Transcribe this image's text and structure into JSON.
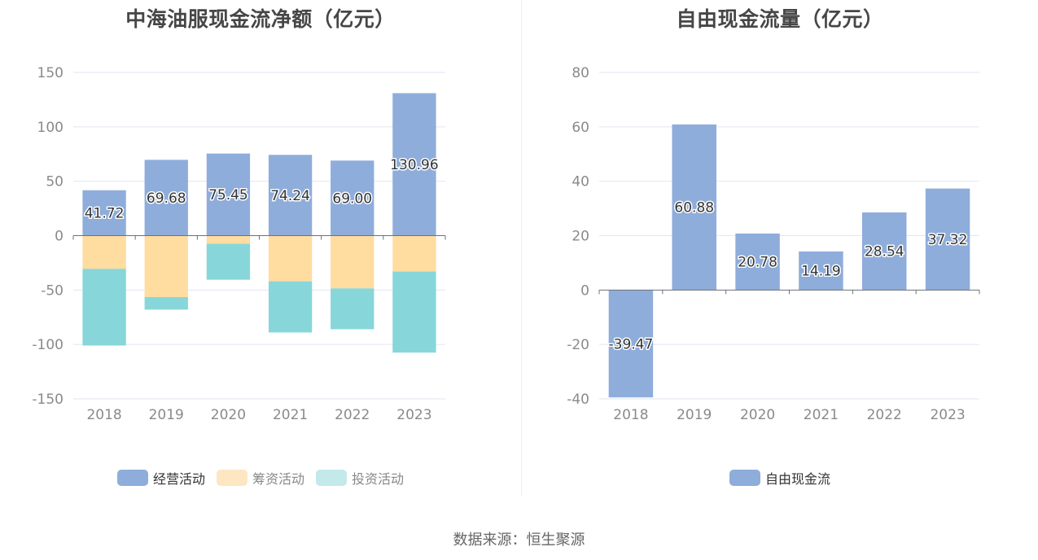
{
  "colors": {
    "operating": "#8eaddb",
    "financing": "#ffdca0",
    "investing": "#87d6da"
  },
  "source_text": "数据来源：恒生聚源",
  "chart_data": [
    {
      "type": "bar",
      "title": "中海油服现金流净额（亿元）",
      "stacked": true,
      "categories": [
        "2018",
        "2019",
        "2020",
        "2021",
        "2022",
        "2023"
      ],
      "ylim": [
        -150,
        150
      ],
      "yticks": [
        150,
        100,
        50,
        0,
        -50,
        -100,
        -150
      ],
      "grid": true,
      "legend_position": "bottom",
      "series": [
        {
          "name": "经营活动",
          "color": "#8eaddb",
          "values": [
            41.72,
            69.68,
            75.45,
            74.24,
            69.0,
            130.96
          ],
          "labels": [
            "41.72",
            "69.68",
            "75.45",
            "74.24",
            "69.00",
            "130.96"
          ]
        },
        {
          "name": "筹资活动",
          "color": "#ffdca0",
          "legend_color": "#fde6c2",
          "values": [
            -30.5,
            -56.5,
            -7.5,
            -42,
            -48.5,
            -33
          ]
        },
        {
          "name": "投资活动",
          "color": "#87d6da",
          "legend_color": "#c3e9ea",
          "values": [
            -70.5,
            -11.5,
            -33,
            -47,
            -37.5,
            -74.5
          ]
        }
      ]
    },
    {
      "type": "bar",
      "title": "自由现金流量（亿元）",
      "categories": [
        "2018",
        "2019",
        "2020",
        "2021",
        "2022",
        "2023"
      ],
      "ylim": [
        -40,
        80
      ],
      "yticks": [
        80,
        60,
        40,
        20,
        0,
        -20,
        -40
      ],
      "grid": true,
      "legend_position": "bottom",
      "series": [
        {
          "name": "自由现金流",
          "color": "#8eaddb",
          "values": [
            -39.47,
            60.88,
            20.78,
            14.19,
            28.54,
            37.32
          ],
          "labels": [
            "-39.47",
            "60.88",
            "20.78",
            "14.19",
            "28.54",
            "37.32"
          ]
        }
      ]
    }
  ]
}
